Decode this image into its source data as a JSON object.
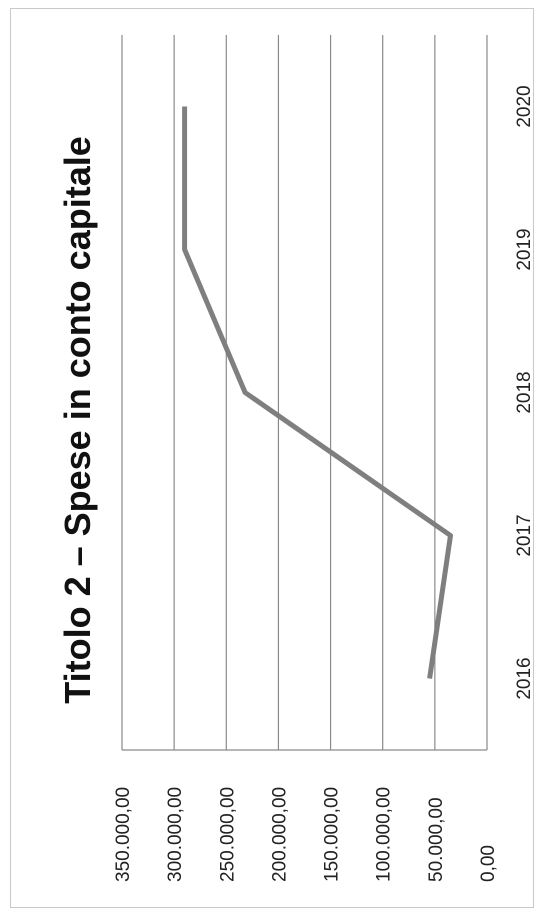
{
  "chart_data": {
    "type": "line",
    "title": "Titolo 2 – Spese in conto capitale",
    "categories": [
      "2016",
      "2017",
      "2018",
      "2019",
      "2020"
    ],
    "series": [
      {
        "values": [
          55000,
          35000,
          232000,
          290000,
          290000
        ]
      }
    ],
    "ylim": [
      0,
      350000
    ],
    "y_ticks": [
      "0,00",
      "50.000,00",
      "100.000,00",
      "150.000,00",
      "200.000,00",
      "250.000,00",
      "300.000,00",
      "350.000,00"
    ],
    "grid": true,
    "orientation": "rotated-90-ccw",
    "line_color": "#7f7f7f",
    "grid_color": "#8a8a8a"
  }
}
